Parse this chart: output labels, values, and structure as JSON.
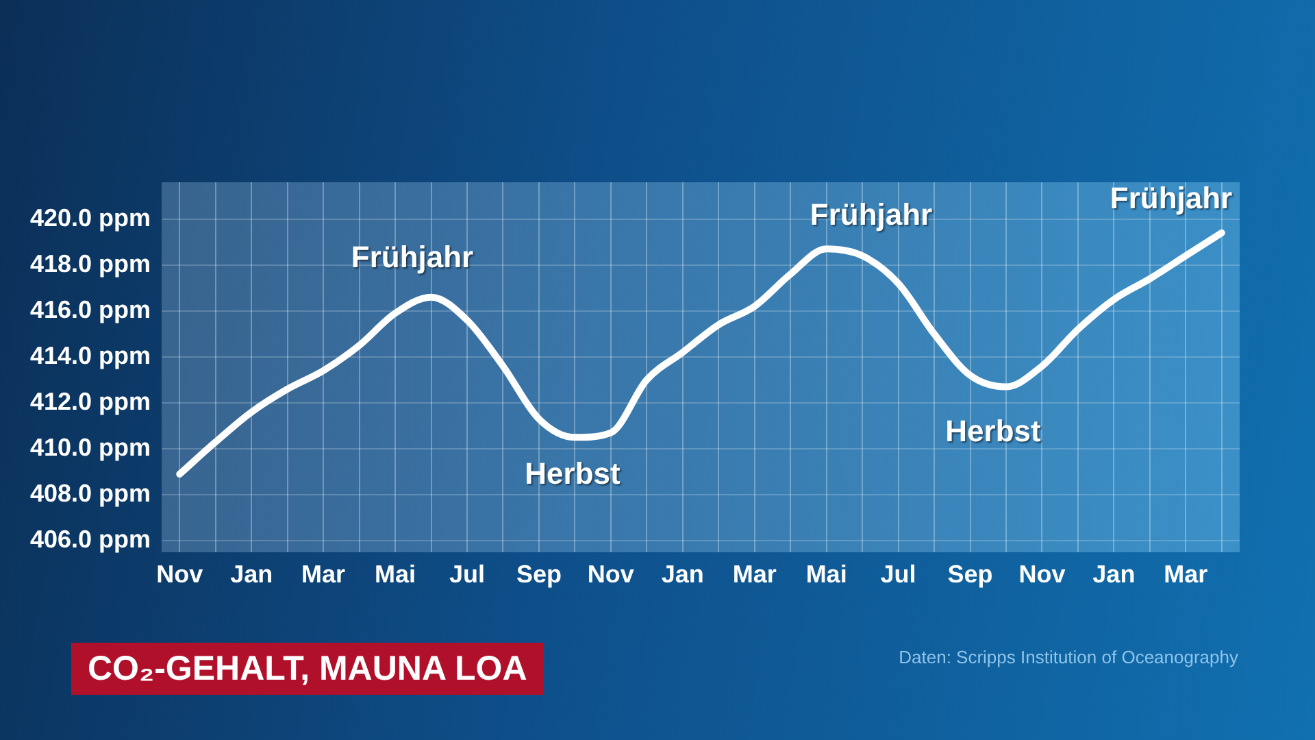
{
  "chart_data": {
    "type": "line",
    "title": "CO₂-GEHALT, MAUNA LOA",
    "annotations": [
      "Frühjahr",
      "Herbst",
      "Frühjahr",
      "Herbst",
      "Frühjahr",
      "Daten: Scripps Institution of Oceanography"
    ],
    "categories": [
      "Nov",
      null,
      "Jan",
      null,
      "Mar",
      null,
      "Mai",
      null,
      "Jul",
      null,
      "Sep",
      null,
      "Nov",
      null,
      "Jan",
      null,
      "Mar",
      null,
      "Mai",
      null,
      "Jul",
      null,
      "Sep",
      null,
      "Nov",
      null,
      "Jan",
      null,
      "Mar",
      null
    ],
    "series": [
      {
        "color": "#ffffff",
        "values": [
          408.9,
          410.3,
          411.6,
          412.6,
          413.4,
          414.5,
          415.9,
          416.6,
          415.6,
          413.6,
          411.3,
          410.5,
          410.7,
          413.0,
          414.2,
          415.4,
          416.2,
          417.6,
          418.7,
          418.4,
          417.2,
          415.0,
          413.2,
          412.7,
          413.6,
          415.2,
          416.5,
          417.4,
          418.4,
          419.4
        ]
      }
    ],
    "ylim": [
      405.5,
      421.6
    ],
    "yticks": [
      {
        "value": 406,
        "label": "406.0 ppm"
      },
      {
        "value": 408,
        "label": "408.0 ppm"
      },
      {
        "value": 410,
        "label": "410.0 ppm"
      },
      {
        "value": 412,
        "label": "412.0 ppm"
      },
      {
        "value": 414,
        "label": "414.0 ppm"
      },
      {
        "value": 416,
        "label": "416.0 ppm"
      },
      {
        "value": 418,
        "label": "418.0 ppm"
      },
      {
        "value": 420,
        "label": "420.0 ppm"
      }
    ],
    "grid": true,
    "legend": false,
    "marker": "none",
    "line_style": "solid"
  }
}
